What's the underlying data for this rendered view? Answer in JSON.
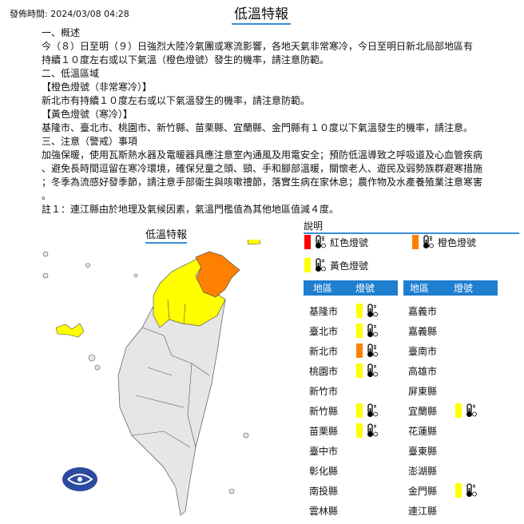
{
  "header": {
    "publish_time": "發佈時間: 2024/03/08 04:28",
    "title": "低溫特報"
  },
  "body": {
    "lines": [
      "一、概述",
      "今（８）日至明（９）日強烈大陸冷氣團或寒流影響，各地天氣非常寒冷，今日至明日新北局部地區有",
      "持續１０度左右或以下氣溫（橙色燈號）發生的機率，請注意防範。",
      "二、低溫區域",
      "【橙色燈號（非常寒冷）】",
      "新北市有持續１０度左右或以下氣溫發生的機率，請注意防範。",
      "【黃色燈號（寒冷）】",
      "基隆市、臺北市、桃園市、新竹縣、苗栗縣、宜蘭縣、金門縣有１０度以下氣溫發生的機率，請注意。",
      "三、注意（警戒）事項",
      "加強保暖，使用瓦斯熱水器及電暖器具應注意室內通風及用電安全；預防低溫導致之呼吸道及心血管疾病",
      "、避免長時間逗留在寒冷環境，確保兒童之頭、頸、手和腳部溫暖，關懷老人、遊民及弱勢族群避寒措施",
      "；冬季為流感好發季節，請注意手部衛生與咳嗽禮節，落實生病在家休息；農作物及水產養殖業注意寒害",
      "。",
      "註１：連江縣由於地理及氣候因素，氣溫門檻值為其他地區值減４度。"
    ]
  },
  "map": {
    "title": "低溫特報"
  },
  "legend": {
    "title": "說明",
    "items": [
      {
        "label": "紅色燈號",
        "color": "#ff0000"
      },
      {
        "label": "橙色燈號",
        "color": "#ff8000"
      },
      {
        "label": "黃色燈號",
        "color": "#ffff00"
      }
    ]
  },
  "table": {
    "col_region": "地區",
    "col_signal": "燈號",
    "left": [
      {
        "region": "基隆市",
        "level": "yellow"
      },
      {
        "region": "臺北市",
        "level": "yellow"
      },
      {
        "region": "新北市",
        "level": "orange"
      },
      {
        "region": "桃園市",
        "level": "yellow"
      },
      {
        "region": "新竹市",
        "level": ""
      },
      {
        "region": "新竹縣",
        "level": "yellow"
      },
      {
        "region": "苗栗縣",
        "level": "yellow"
      },
      {
        "region": "臺中市",
        "level": ""
      },
      {
        "region": "彰化縣",
        "level": ""
      },
      {
        "region": "南投縣",
        "level": ""
      },
      {
        "region": "雲林縣",
        "level": ""
      }
    ],
    "right": [
      {
        "region": "嘉義市",
        "level": ""
      },
      {
        "region": "嘉義縣",
        "level": ""
      },
      {
        "region": "臺南市",
        "level": ""
      },
      {
        "region": "高雄市",
        "level": ""
      },
      {
        "region": "屏東縣",
        "level": ""
      },
      {
        "region": "宜蘭縣",
        "level": "yellow"
      },
      {
        "region": "花蓮縣",
        "level": ""
      },
      {
        "region": "臺東縣",
        "level": ""
      },
      {
        "region": "澎湖縣",
        "level": ""
      },
      {
        "region": "金門縣",
        "level": "yellow"
      },
      {
        "region": "連江縣",
        "level": ""
      }
    ]
  },
  "colors": {
    "yellow": "#ffff00",
    "orange": "#ff8000",
    "red": "#ff0000",
    "accent": "#1e7fcf",
    "land": "#e6e6e6"
  }
}
